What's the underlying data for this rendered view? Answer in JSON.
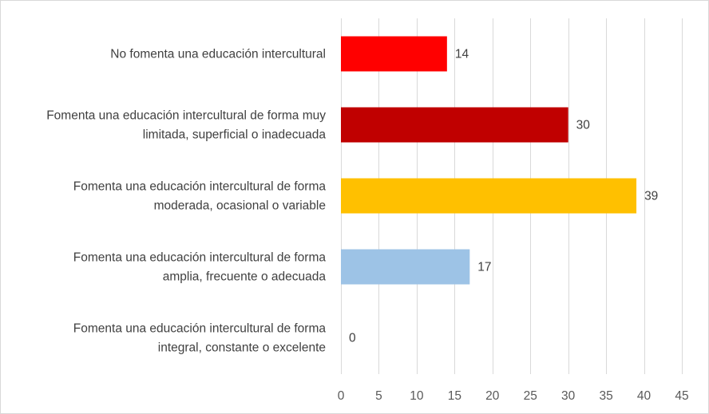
{
  "chart_data": {
    "type": "bar",
    "orientation": "horizontal",
    "categories": [
      [
        "No fomenta una educación intercultural"
      ],
      [
        "Fomenta una educación intercultural de forma muy",
        "limitada, superficial o inadecuada"
      ],
      [
        "Fomenta una educación intercultural  de forma",
        "moderada, ocasional o variable"
      ],
      [
        "Fomenta una educación intercultural de forma",
        "amplia, frecuente o adecuada"
      ],
      [
        "Fomenta una educación intercultural de forma",
        "integral, constante o excelente"
      ]
    ],
    "values": [
      14,
      30,
      39,
      17,
      0
    ],
    "colors": [
      "#ff0000",
      "#c00000",
      "#ffc000",
      "#9dc3e6",
      "#9dc3e6"
    ],
    "xlim": [
      0,
      45
    ],
    "xticks": [
      0,
      5,
      10,
      15,
      20,
      25,
      30,
      35,
      40,
      45
    ],
    "grid": true,
    "gridColor": "#d9d9d9",
    "title": "",
    "xlabel": "",
    "ylabel": "",
    "legend": "none"
  }
}
